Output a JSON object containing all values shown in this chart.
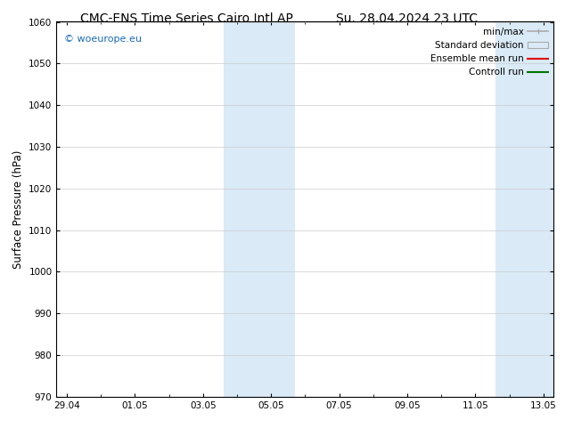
{
  "title_left": "CMC-ENS Time Series Cairo Intl AP",
  "title_right": "Su. 28.04.2024 23 UTC",
  "ylabel": "Surface Pressure (hPa)",
  "ylim": [
    970,
    1060
  ],
  "yticks": [
    970,
    980,
    990,
    1000,
    1010,
    1020,
    1030,
    1040,
    1050,
    1060
  ],
  "xtick_labels": [
    "29.04",
    "01.05",
    "03.05",
    "05.05",
    "07.05",
    "09.05",
    "11.05",
    "13.05"
  ],
  "xtick_positions": [
    0,
    2,
    4,
    6,
    8,
    10,
    12,
    14
  ],
  "xlim": [
    -0.3,
    14.3
  ],
  "shaded_bands": [
    {
      "x_start": 4.6,
      "x_end": 6.7
    },
    {
      "x_start": 12.6,
      "x_end": 14.3
    }
  ],
  "shaded_color": "#daeaf7",
  "background_color": "#ffffff",
  "watermark_text": "© woeurope.eu",
  "watermark_color": "#1a6bb5",
  "title_fontsize": 10,
  "tick_fontsize": 7.5,
  "ylabel_fontsize": 8.5,
  "legend_fontsize": 7.5,
  "minmax_color": "#aaaaaa",
  "std_facecolor": "#daeaf7",
  "std_edgecolor": "#aaaaaa",
  "ensemble_color": "#dd0000",
  "control_color": "#007700"
}
